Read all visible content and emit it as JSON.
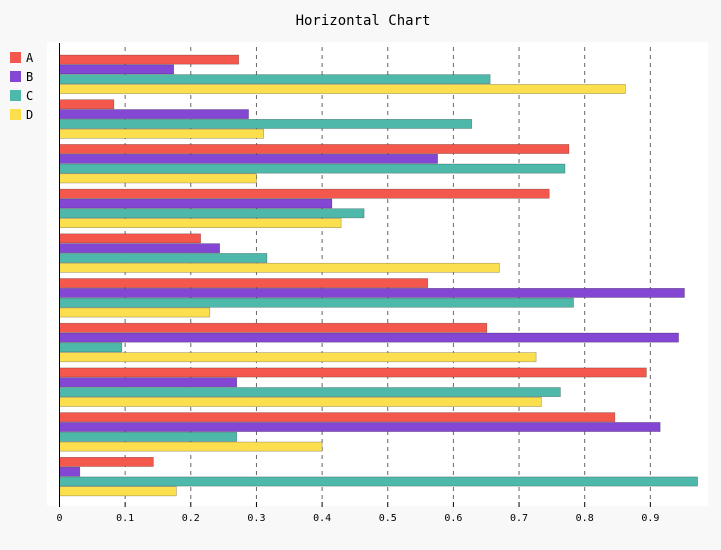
{
  "chart_data": {
    "type": "bar",
    "orientation": "horizontal",
    "title": "Horizontal Chart",
    "xlabel": "",
    "ylabel": "",
    "xlim": [
      0,
      0.98
    ],
    "x_ticks": [
      0,
      0.1,
      0.2,
      0.3,
      0.4,
      0.5,
      0.6,
      0.7,
      0.8,
      0.9
    ],
    "x_tick_labels": [
      "0",
      "0.1",
      "0.2",
      "0.3",
      "0.4",
      "0.5",
      "0.6",
      "0.7",
      "0.8",
      "0.9"
    ],
    "grid": true,
    "legend_position": "top-left",
    "categories_count": 10,
    "category_order": "top-to-bottom",
    "series": [
      {
        "name": "A",
        "color": "#f4574b",
        "values": [
          0.273,
          0.083,
          0.776,
          0.746,
          0.215,
          0.561,
          0.651,
          0.894,
          0.846,
          0.143
        ]
      },
      {
        "name": "B",
        "color": "#8347d3",
        "values": [
          0.174,
          0.288,
          0.576,
          0.415,
          0.244,
          0.952,
          0.943,
          0.27,
          0.915,
          0.031
        ]
      },
      {
        "name": "C",
        "color": "#4eb9aa",
        "values": [
          0.656,
          0.628,
          0.77,
          0.464,
          0.316,
          0.783,
          0.095,
          0.763,
          0.27,
          0.972
        ]
      },
      {
        "name": "D",
        "color": "#fbdf4f",
        "values": [
          0.862,
          0.311,
          0.3,
          0.429,
          0.67,
          0.229,
          0.726,
          0.734,
          0.4,
          0.178
        ]
      }
    ]
  }
}
